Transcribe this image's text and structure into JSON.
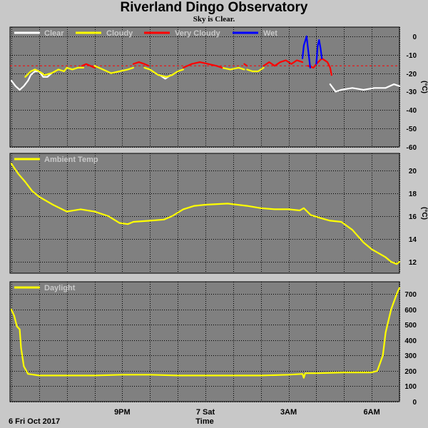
{
  "title": "Riverland Dingo Observatory",
  "subtitle": "Sky is Clear.",
  "footer": {
    "date_label": "6 Fri Oct 2017",
    "xlabel": "Time"
  },
  "x_ticks": [
    {
      "hour": 3,
      "label": "9PM"
    },
    {
      "hour": 6,
      "label": "7 Sat"
    },
    {
      "hour": 9,
      "label": "3AM"
    },
    {
      "hour": 12,
      "label": "6AM"
    }
  ],
  "colors": {
    "panel_bg": "#808080",
    "page_bg": "#c8c8c8",
    "grid": "#000000",
    "clear": "#ffffff",
    "cloudy": "#ffff00",
    "very_cloudy": "#ff0000",
    "wet": "#0000ff",
    "threshold": "#ff0000",
    "ambient": "#ffff00",
    "daylight": "#ffff00"
  },
  "chart_data": [
    {
      "type": "line",
      "id": "sky",
      "xlabel": "Time",
      "x_axis": "hours since 6PM, 6 Fri Oct 2017",
      "xlim": [
        -1.05,
        13
      ],
      "ylabel": "(°C)",
      "ylim": [
        -60,
        5
      ],
      "yticks": [
        0,
        -10,
        -20,
        -30,
        -40,
        -50,
        -60
      ],
      "threshold": -16,
      "legend": [
        {
          "name": "Clear",
          "color": "#ffffff"
        },
        {
          "name": "Cloudy",
          "color": "#ffff00"
        },
        {
          "name": "Very Cloudy",
          "color": "#ff0000"
        },
        {
          "name": "Wet",
          "color": "#0000ff"
        }
      ],
      "series": [
        {
          "name": "Clear",
          "color": "#ffffff",
          "segments": [
            [
              [
                -1.0,
                -24
              ],
              [
                -0.85,
                -27
              ],
              [
                -0.7,
                -29
              ],
              [
                -0.55,
                -27
              ],
              [
                -0.4,
                -24
              ],
              [
                -0.3,
                -21
              ],
              [
                -0.15,
                -19
              ],
              [
                0.0,
                -19
              ],
              [
                0.15,
                -22
              ],
              [
                0.3,
                -22
              ],
              [
                0.45,
                -20
              ]
            ],
            [
              [
                4.35,
                -21
              ],
              [
                4.55,
                -23
              ],
              [
                4.75,
                -21
              ]
            ],
            [
              [
                10.5,
                -26
              ],
              [
                10.7,
                -30
              ],
              [
                10.9,
                -29
              ],
              [
                11.3,
                -28
              ],
              [
                11.7,
                -29
              ],
              [
                12.1,
                -28
              ],
              [
                12.5,
                -28
              ],
              [
                12.8,
                -26
              ],
              [
                13.0,
                -27
              ]
            ]
          ]
        },
        {
          "name": "Cloudy",
          "color": "#ffff00",
          "segments": [
            [
              [
                -0.5,
                -22
              ],
              [
                -0.3,
                -19
              ],
              [
                -0.15,
                -18
              ],
              [
                0.0,
                -19
              ],
              [
                0.2,
                -21
              ],
              [
                0.45,
                -20
              ],
              [
                0.7,
                -18
              ],
              [
                0.9,
                -19
              ],
              [
                1.0,
                -17
              ],
              [
                1.2,
                -18
              ],
              [
                1.4,
                -17
              ],
              [
                1.6,
                -17
              ]
            ],
            [
              [
                2.0,
                -16
              ],
              [
                2.3,
                -18
              ],
              [
                2.6,
                -20
              ],
              [
                2.9,
                -19
              ],
              [
                3.2,
                -18
              ],
              [
                3.4,
                -17
              ]
            ],
            [
              [
                3.8,
                -17
              ],
              [
                4.0,
                -18
              ],
              [
                4.3,
                -21
              ],
              [
                4.6,
                -22
              ],
              [
                4.8,
                -21
              ],
              [
                5.0,
                -19
              ],
              [
                5.2,
                -18
              ]
            ],
            [
              [
                6.6,
                -17
              ],
              [
                6.9,
                -18
              ],
              [
                7.2,
                -17
              ],
              [
                7.4,
                -18
              ]
            ],
            [
              [
                7.5,
                -18
              ],
              [
                7.7,
                -19
              ],
              [
                7.9,
                -19
              ],
              [
                8.1,
                -17
              ]
            ]
          ]
        },
        {
          "name": "Very Cloudy",
          "color": "#ff0000",
          "segments": [
            [
              [
                1.55,
                -16
              ],
              [
                1.7,
                -15
              ],
              [
                1.85,
                -16
              ],
              [
                2.0,
                -17
              ]
            ],
            [
              [
                3.4,
                -15
              ],
              [
                3.6,
                -14
              ],
              [
                3.8,
                -15
              ],
              [
                3.95,
                -16
              ]
            ],
            [
              [
                5.2,
                -17
              ],
              [
                5.5,
                -15
              ],
              [
                5.8,
                -14
              ],
              [
                6.1,
                -15
              ],
              [
                6.4,
                -16
              ],
              [
                6.6,
                -17
              ]
            ],
            [
              [
                7.4,
                -15
              ],
              [
                7.5,
                -16
              ]
            ],
            [
              [
                8.1,
                -16
              ],
              [
                8.3,
                -14
              ],
              [
                8.5,
                -16
              ],
              [
                8.7,
                -14
              ],
              [
                8.9,
                -13
              ],
              [
                9.1,
                -15
              ],
              [
                9.3,
                -13
              ],
              [
                9.5,
                -14
              ]
            ],
            [
              [
                9.7,
                -16
              ],
              [
                9.9,
                -17
              ],
              [
                10.0,
                -15
              ],
              [
                10.2,
                -12
              ],
              [
                10.4,
                -14
              ],
              [
                10.5,
                -17
              ],
              [
                10.55,
                -21
              ]
            ]
          ]
        },
        {
          "name": "Wet",
          "color": "#0000ff",
          "segments": [
            [
              [
                9.5,
                -12
              ],
              [
                9.55,
                -5
              ],
              [
                9.65,
                0
              ],
              [
                9.72,
                -9
              ],
              [
                9.78,
                -17
              ]
            ],
            [
              [
                10.0,
                -15
              ],
              [
                10.05,
                -5
              ],
              [
                10.1,
                -2
              ],
              [
                10.15,
                -6
              ],
              [
                10.2,
                -12
              ]
            ]
          ]
        }
      ]
    },
    {
      "type": "line",
      "id": "ambient",
      "x_axis": "hours since 6PM, 6 Fri Oct 2017",
      "xlim": [
        -1.05,
        13
      ],
      "ylabel": "(°C)",
      "ylim": [
        11,
        21.5
      ],
      "yticks": [
        12,
        14,
        16,
        18,
        20
      ],
      "legend": [
        {
          "name": "Ambient Temp",
          "color": "#ffff00"
        }
      ],
      "series": [
        {
          "name": "Ambient Temp",
          "color": "#ffff00",
          "points": [
            [
              -1.0,
              20.6
            ],
            [
              -0.75,
              19.7
            ],
            [
              -0.5,
              19.0
            ],
            [
              -0.25,
              18.2
            ],
            [
              0.0,
              17.7
            ],
            [
              0.5,
              17.0
            ],
            [
              1.0,
              16.4
            ],
            [
              1.5,
              16.6
            ],
            [
              2.0,
              16.4
            ],
            [
              2.5,
              16.0
            ],
            [
              2.9,
              15.4
            ],
            [
              3.2,
              15.3
            ],
            [
              3.4,
              15.5
            ],
            [
              4.0,
              15.6
            ],
            [
              4.5,
              15.7
            ],
            [
              4.8,
              16.0
            ],
            [
              5.2,
              16.6
            ],
            [
              5.6,
              16.9
            ],
            [
              6.0,
              17.0
            ],
            [
              6.8,
              17.1
            ],
            [
              7.5,
              16.9
            ],
            [
              8.0,
              16.7
            ],
            [
              8.5,
              16.6
            ],
            [
              9.0,
              16.6
            ],
            [
              9.4,
              16.5
            ],
            [
              9.55,
              16.7
            ],
            [
              9.8,
              16.1
            ],
            [
              10.2,
              15.8
            ],
            [
              10.5,
              15.6
            ],
            [
              10.9,
              15.5
            ],
            [
              11.3,
              14.8
            ],
            [
              11.7,
              13.7
            ],
            [
              12.0,
              13.1
            ],
            [
              12.5,
              12.4
            ],
            [
              12.7,
              12.0
            ],
            [
              12.9,
              11.8
            ],
            [
              13.0,
              12.0
            ]
          ]
        }
      ]
    },
    {
      "type": "line",
      "id": "daylight",
      "x_axis": "hours since 6PM, 6 Fri Oct 2017",
      "xlim": [
        -1.05,
        13
      ],
      "ylim": [
        0,
        780
      ],
      "yticks": [
        0,
        100,
        200,
        300,
        400,
        500,
        600,
        700
      ],
      "legend": [
        {
          "name": "Daylight",
          "color": "#ffff00"
        }
      ],
      "series": [
        {
          "name": "Daylight",
          "color": "#ffff00",
          "points": [
            [
              -1.0,
              600
            ],
            [
              -0.9,
              560
            ],
            [
              -0.8,
              490
            ],
            [
              -0.7,
              470
            ],
            [
              -0.65,
              350
            ],
            [
              -0.55,
              230
            ],
            [
              -0.4,
              180
            ],
            [
              0.0,
              170
            ],
            [
              1.0,
              170
            ],
            [
              2.0,
              170
            ],
            [
              3.0,
              175
            ],
            [
              4.0,
              175
            ],
            [
              5.0,
              170
            ],
            [
              6.0,
              170
            ],
            [
              7.0,
              170
            ],
            [
              8.0,
              170
            ],
            [
              9.0,
              175
            ],
            [
              9.5,
              180
            ],
            [
              9.55,
              155
            ],
            [
              9.6,
              185
            ],
            [
              10.0,
              185
            ],
            [
              11.0,
              190
            ],
            [
              12.0,
              190
            ],
            [
              12.2,
              200
            ],
            [
              12.4,
              300
            ],
            [
              12.5,
              450
            ],
            [
              12.7,
              600
            ],
            [
              12.9,
              700
            ],
            [
              13.0,
              740
            ]
          ]
        }
      ]
    }
  ]
}
